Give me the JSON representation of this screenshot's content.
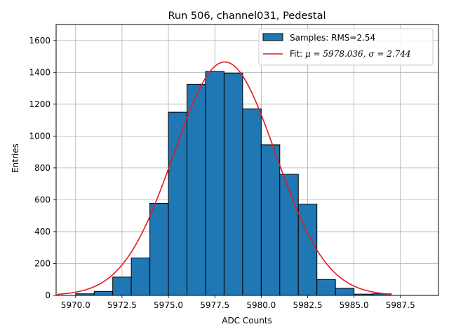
{
  "chart_data": {
    "type": "bar",
    "title": "Run 506, channel031, Pedestal",
    "xlabel": "ADC Counts",
    "ylabel": "Entries",
    "xlim": [
      5968.95,
      5989.55
    ],
    "ylim": [
      0,
      1700
    ],
    "xticks": [
      5970.0,
      5972.5,
      5975.0,
      5977.5,
      5980.0,
      5982.5,
      5985.0,
      5987.5
    ],
    "xtick_labels": [
      "5970.0",
      "5972.5",
      "5975.0",
      "5977.5",
      "5980.0",
      "5982.5",
      "5985.0",
      "5987.5"
    ],
    "yticks": [
      0,
      200,
      400,
      600,
      800,
      1000,
      1200,
      1400,
      1600
    ],
    "ytick_labels": [
      "0",
      "200",
      "400",
      "600",
      "800",
      "1000",
      "1200",
      "1400",
      "1600"
    ],
    "grid": true,
    "legend_position": "top-right",
    "histogram": {
      "name": "Samples: RMS=2.54",
      "color": "#1f77b4",
      "edge_color": "#000000",
      "bin_edges": [
        5969.0,
        5970.0,
        5971.0,
        5972.0,
        5973.0,
        5974.0,
        5975.0,
        5976.0,
        5977.0,
        5978.0,
        5979.0,
        5980.0,
        5981.0,
        5982.0,
        5983.0,
        5984.0,
        5985.0,
        5986.0,
        5987.0,
        5988.0,
        5989.0
      ],
      "counts": [
        0,
        10,
        25,
        115,
        235,
        578,
        1150,
        1325,
        1405,
        1395,
        1170,
        945,
        760,
        573,
        100,
        45,
        8,
        10,
        0,
        0
      ]
    },
    "fit": {
      "name": "Fit: μ = 5978.036, σ = 2.744",
      "label_prefix": "Fit: ",
      "mu_label": "μ = 5978.036, ",
      "sigma_label": "σ = 2.744",
      "color": "#e41a1c",
      "mu": 5978.036,
      "sigma": 2.744,
      "amplitude": 1465,
      "x_range": [
        5969.0,
        5987.0
      ]
    }
  }
}
